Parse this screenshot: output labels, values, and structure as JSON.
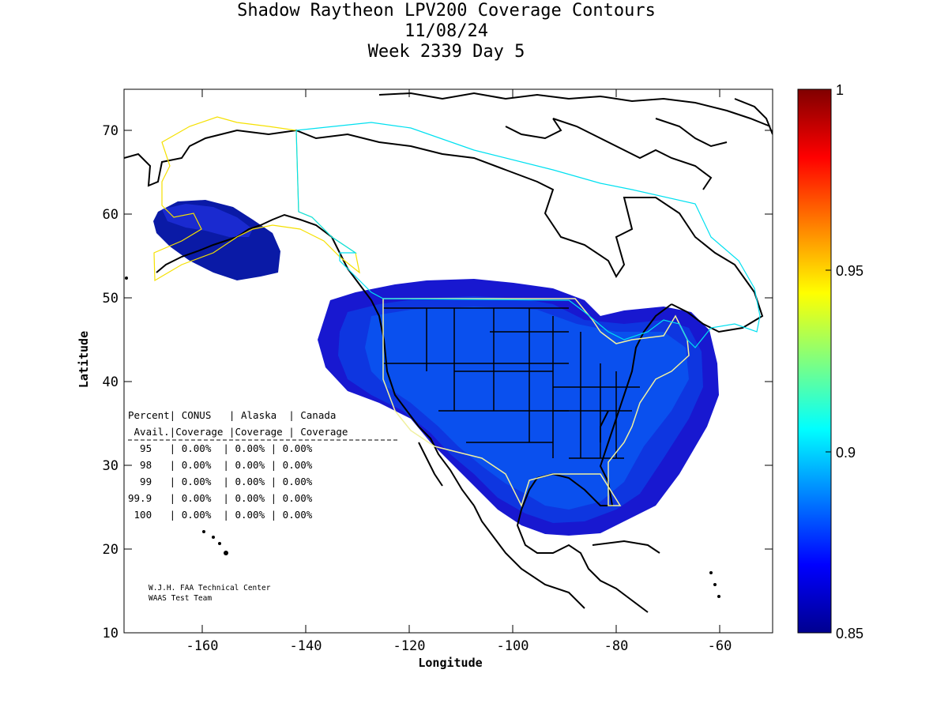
{
  "title": {
    "line1": "Shadow Raytheon LPV200 Coverage Contours",
    "line2": "11/08/24",
    "line3": "Week 2339 Day 5"
  },
  "axes": {
    "xlabel": "Longitude",
    "ylabel": "Latitude",
    "xlim": [
      -175,
      -50
    ],
    "ylim": [
      10,
      75
    ],
    "xticks": [
      "-160",
      "-140",
      "-120",
      "-100",
      "-80",
      "-60"
    ],
    "yticks": [
      "10",
      "20",
      "30",
      "40",
      "50",
      "60",
      "70"
    ]
  },
  "colorbar": {
    "min": 0.85,
    "max": 1,
    "ticks": [
      "0.85",
      "0.9",
      "0.95",
      "1"
    ],
    "colormap": "jet"
  },
  "table": {
    "header1": "Percent| CONUS   | Alaska  | Canada",
    "header2": " Avail.|Coverage |Coverage | Coverage",
    "separator": "--------------------------------------------------",
    "rows": [
      "  95   | 0.00%  | 0.00% | 0.00%",
      "  98   | 0.00%  | 0.00% | 0.00%",
      "  99   | 0.00%  | 0.00% | 0.00%",
      "99.9   | 0.00%  | 0.00% | 0.00%",
      " 100   | 0.00%  | 0.00% | 0.00%"
    ]
  },
  "credit": {
    "line1": "W.J.H. FAA Technical Center",
    "line2": "WAAS Test Team"
  },
  "colors": {
    "coverage_outer": "#1a1ad6",
    "coverage_mid": "#1040e8",
    "coverage_inner": "#0a5af2",
    "alaska_coverage": "#0a1aa8",
    "conus_boundary": "#f0f0a0",
    "alaska_boundary": "#f5e000",
    "canada_boundary": "#00e0f0"
  }
}
